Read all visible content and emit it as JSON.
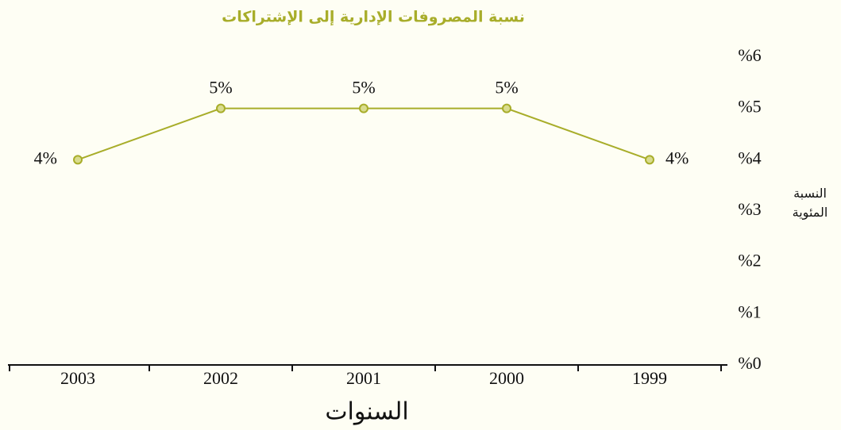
{
  "chart_data": {
    "type": "line",
    "title": "نسبة المصروفات الإدارية إلى الإشتراكات",
    "x_label": "السنوات",
    "y_label": "النسبة المئوية",
    "categories": [
      "2003",
      "2002",
      "2001",
      "2000",
      "1999"
    ],
    "series": [
      {
        "color": "#a8ad2a",
        "values": [
          4,
          5,
          5,
          5,
          4
        ],
        "value_labels": [
          "4%",
          "5%",
          "5%",
          "5%",
          "4%"
        ]
      }
    ],
    "ylim": [
      0,
      6
    ],
    "yticks": [
      {
        "value": 0,
        "label": "%0"
      },
      {
        "value": 1,
        "label": "%1"
      },
      {
        "value": 2,
        "label": "%2"
      },
      {
        "value": 3,
        "label": "%3"
      },
      {
        "value": 4,
        "label": "%4"
      },
      {
        "value": 5,
        "label": "%5"
      },
      {
        "value": 6,
        "label": "%6"
      }
    ],
    "grid": false
  }
}
